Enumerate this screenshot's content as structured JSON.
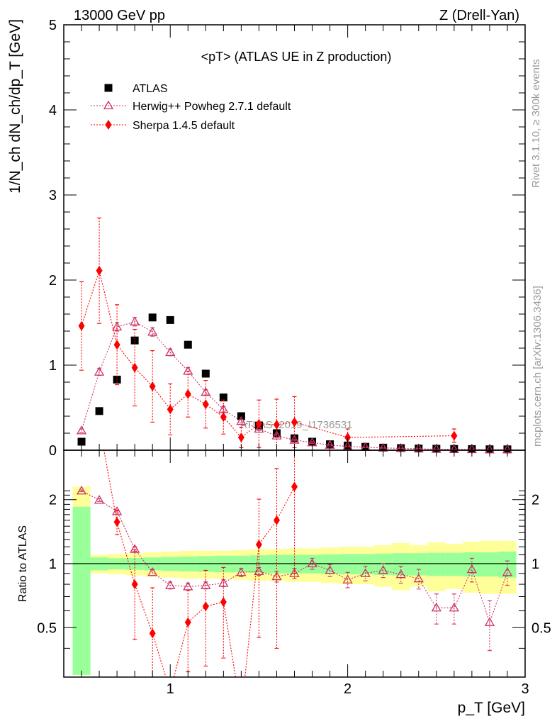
{
  "header": {
    "left": "13000 GeV pp",
    "right": "Z (Drell-Yan)"
  },
  "side_labels": {
    "rivet": "Rivet 3.1.10, ≥ 300k events",
    "mcplots": "mcplots.cern.ch [arXiv:1306.3436]"
  },
  "watermark": "ATLAS_2019_I1736531",
  "colors": {
    "atlas": "#000000",
    "herwig": "#cc3366",
    "sherpa": "#ff0000",
    "band_inner": "#99ff99",
    "band_outer": "#ffff99"
  },
  "chart_data": [
    {
      "type": "scatter",
      "panel": "main",
      "title": "<pT> (ATLAS UE in Z production)",
      "xlabel": "p_T [GeV]",
      "ylabel": "1/N_ch dN_ch/dp_T [GeV]",
      "xlim": [
        0.4,
        3.0
      ],
      "ylim": [
        0,
        5
      ],
      "yticks": [
        "0",
        "1",
        "2",
        "3",
        "4",
        "5"
      ],
      "legend_position": "top-left",
      "series": [
        {
          "name": "ATLAS",
          "marker": "square",
          "x": [
            0.5,
            0.6,
            0.7,
            0.8,
            0.9,
            1.0,
            1.1,
            1.2,
            1.3,
            1.4,
            1.5,
            1.6,
            1.7,
            1.8,
            1.9,
            2.0,
            2.1,
            2.2,
            2.3,
            2.4,
            2.5,
            2.6,
            2.7,
            2.8,
            2.9
          ],
          "y": [
            0.1,
            0.46,
            0.83,
            1.29,
            1.56,
            1.53,
            1.24,
            0.9,
            0.62,
            0.4,
            0.29,
            0.2,
            0.14,
            0.1,
            0.07,
            0.055,
            0.04,
            0.03,
            0.025,
            0.02,
            0.017,
            0.015,
            0.013,
            0.011,
            0.01
          ]
        },
        {
          "name": "Herwig++ Powheg 2.7.1 default",
          "marker": "open-triangle",
          "x": [
            0.5,
            0.6,
            0.7,
            0.8,
            0.9,
            1.0,
            1.1,
            1.2,
            1.3,
            1.4,
            1.5,
            1.6,
            1.7,
            1.8,
            1.9,
            2.0,
            2.1,
            2.2,
            2.3,
            2.4,
            2.5,
            2.6,
            2.7,
            2.8,
            2.9
          ],
          "y": [
            0.23,
            0.92,
            1.45,
            1.51,
            1.39,
            1.15,
            0.93,
            0.68,
            0.48,
            0.34,
            0.25,
            0.17,
            0.12,
            0.09,
            0.06,
            0.045,
            0.035,
            0.027,
            0.022,
            0.017,
            0.012,
            0.01,
            0.009,
            0.006,
            0.007
          ],
          "yerr": [
            0.02,
            0.04,
            0.05,
            0.05,
            0.05,
            0.04,
            0.04,
            0.03,
            0.03,
            0.02,
            0.02,
            0.02,
            0.01,
            0.01,
            0.01,
            0.005,
            0.005,
            0.004,
            0.003,
            0.003,
            0.002,
            0.002,
            0.002,
            0.002,
            0.002
          ]
        },
        {
          "name": "Sherpa 1.4.5 default",
          "marker": "diamond",
          "x": [
            0.5,
            0.6,
            0.7,
            0.8,
            0.9,
            1.0,
            1.1,
            1.2,
            1.3,
            1.4,
            1.5,
            1.6,
            1.7,
            2.0,
            2.6
          ],
          "y": [
            1.46,
            2.11,
            1.24,
            0.97,
            0.75,
            0.48,
            0.66,
            0.54,
            0.39,
            0.15,
            0.31,
            0.3,
            0.33,
            0.15,
            0.17
          ],
          "yerr": [
            0.52,
            0.62,
            0.47,
            0.45,
            0.42,
            0.3,
            0.27,
            0.28,
            0.2,
            0.12,
            0.28,
            0.3,
            0.3,
            0.1,
            0.08
          ]
        }
      ]
    },
    {
      "type": "scatter",
      "panel": "ratio",
      "ylabel": "Ratio to ATLAS",
      "xlabel": "p_T [GeV]",
      "xlim": [
        0.4,
        3.0
      ],
      "ylim": [
        0.35,
        2.3
      ],
      "yticks": [
        "0.5",
        "1",
        "2"
      ],
      "xticks": [
        "1",
        "2",
        "3"
      ],
      "reference_line": 1,
      "band_inner": [
        [
          0.5,
          0.3,
          1.85
        ],
        [
          0.6,
          0.93,
          1.07
        ],
        [
          0.7,
          0.94,
          1.06
        ],
        [
          0.8,
          0.935,
          1.065
        ],
        [
          0.9,
          0.93,
          1.07
        ],
        [
          1.0,
          0.925,
          1.075
        ],
        [
          1.1,
          0.92,
          1.08
        ],
        [
          1.2,
          0.915,
          1.085
        ],
        [
          1.3,
          0.91,
          1.09
        ],
        [
          1.4,
          0.91,
          1.09
        ],
        [
          1.5,
          0.905,
          1.095
        ],
        [
          1.6,
          0.9,
          1.1
        ],
        [
          1.7,
          0.9,
          1.1
        ],
        [
          1.8,
          0.9,
          1.1
        ],
        [
          1.9,
          0.895,
          1.105
        ],
        [
          2.0,
          0.89,
          1.11
        ],
        [
          2.1,
          0.89,
          1.11
        ],
        [
          2.2,
          0.885,
          1.115
        ],
        [
          2.3,
          0.88,
          1.12
        ],
        [
          2.4,
          0.88,
          1.12
        ],
        [
          2.5,
          0.875,
          1.125
        ],
        [
          2.6,
          0.875,
          1.125
        ],
        [
          2.7,
          0.87,
          1.13
        ],
        [
          2.8,
          0.87,
          1.13
        ],
        [
          2.9,
          0.86,
          1.14
        ]
      ],
      "band_outer": [
        [
          0.5,
          0.3,
          2.3
        ],
        [
          0.6,
          0.9,
          1.1
        ],
        [
          0.7,
          0.89,
          1.11
        ],
        [
          0.8,
          0.88,
          1.12
        ],
        [
          0.9,
          0.87,
          1.13
        ],
        [
          1.0,
          0.86,
          1.14
        ],
        [
          1.1,
          0.85,
          1.15
        ],
        [
          1.2,
          0.85,
          1.15
        ],
        [
          1.3,
          0.85,
          1.15
        ],
        [
          1.4,
          0.84,
          1.16
        ],
        [
          1.5,
          0.83,
          1.17
        ],
        [
          1.6,
          0.83,
          1.17
        ],
        [
          1.7,
          0.82,
          1.18
        ],
        [
          1.8,
          0.82,
          1.18
        ],
        [
          1.9,
          0.81,
          1.19
        ],
        [
          2.0,
          0.8,
          1.2
        ],
        [
          2.1,
          0.8,
          1.2
        ],
        [
          2.2,
          0.78,
          1.22
        ],
        [
          2.3,
          0.75,
          1.25
        ],
        [
          2.4,
          0.78,
          1.22
        ],
        [
          2.5,
          0.74,
          1.26
        ],
        [
          2.6,
          0.76,
          1.24
        ],
        [
          2.7,
          0.73,
          1.27
        ],
        [
          2.8,
          0.72,
          1.28
        ],
        [
          2.9,
          0.72,
          1.28
        ]
      ],
      "series": [
        {
          "name": "Herwig++ Powheg 2.7.1 default",
          "x": [
            0.5,
            0.6,
            0.7,
            0.8,
            0.9,
            1.0,
            1.1,
            1.2,
            1.3,
            1.4,
            1.5,
            1.6,
            1.7,
            1.8,
            1.9,
            2.0,
            2.1,
            2.2,
            2.3,
            2.4,
            2.5,
            2.6,
            2.7,
            2.8,
            2.9
          ],
          "y": [
            2.2,
            1.99,
            1.76,
            1.17,
            0.91,
            0.79,
            0.78,
            0.79,
            0.81,
            0.91,
            0.92,
            0.87,
            0.9,
            1.0,
            0.93,
            0.84,
            0.9,
            0.93,
            0.89,
            0.85,
            0.62,
            0.62,
            0.94,
            0.53,
            0.91
          ],
          "yerr": [
            0.02,
            0.03,
            0.03,
            0.03,
            0.03,
            0.03,
            0.03,
            0.03,
            0.03,
            0.04,
            0.04,
            0.05,
            0.05,
            0.06,
            0.06,
            0.07,
            0.07,
            0.07,
            0.08,
            0.09,
            0.1,
            0.1,
            0.12,
            0.14,
            0.12
          ]
        },
        {
          "name": "Sherpa 1.4.5 default",
          "x": [
            0.7,
            0.8,
            0.9,
            1.1,
            1.2,
            1.3,
            1.5,
            1.6,
            1.7
          ],
          "y": [
            1.57,
            0.8,
            0.47,
            0.53,
            0.63,
            0.66,
            1.23,
            1.6,
            2.3
          ],
          "yerr": [
            0.2,
            0.36,
            0.3,
            0.22,
            0.3,
            0.3,
            0.78,
            1.2,
            1.4
          ]
        }
      ]
    }
  ]
}
